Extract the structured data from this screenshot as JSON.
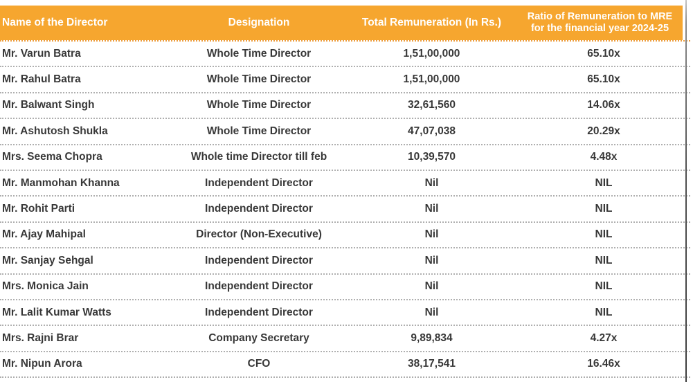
{
  "colors": {
    "header_bg": "#F6A62F",
    "header_text": "#FFFFFF",
    "body_text": "#383838",
    "divider": "#AFAFAF",
    "edge_line": "#4F4F4F"
  },
  "table": {
    "column_keys": [
      "name",
      "designation",
      "remuneration",
      "ratio"
    ],
    "headers": {
      "name": "Name of the Director",
      "designation": "Designation",
      "remuneration": "Total Remuneration (In Rs.)",
      "ratio_line1": "Ratio of Remuneration to MRE",
      "ratio_line2": "for the financial year 2024-25"
    },
    "rows": [
      [
        "Mr. Varun Batra",
        "Whole Time Director",
        "1,51,00,000",
        "65.10x"
      ],
      [
        "Mr. Rahul Batra",
        "Whole Time Director",
        "1,51,00,000",
        "65.10x"
      ],
      [
        "Mr. Balwant Singh",
        "Whole Time Director",
        "32,61,560",
        "14.06x"
      ],
      [
        "Mr. Ashutosh Shukla",
        "Whole Time Director",
        "47,07,038",
        "20.29x"
      ],
      [
        "Mrs. Seema Chopra",
        "Whole time Director till feb",
        "10,39,570",
        "4.48x"
      ],
      [
        "Mr. Manmohan Khanna",
        "Independent Director",
        "Nil",
        "NIL"
      ],
      [
        "Mr. Rohit Parti",
        "Independent Director",
        "Nil",
        "NIL"
      ],
      [
        "Mr. Ajay Mahipal",
        "Director (Non-Executive)",
        "Nil",
        "NIL"
      ],
      [
        "Mr. Sanjay Sehgal",
        "Independent Director",
        "Nil",
        "NIL"
      ],
      [
        "Mrs. Monica Jain",
        "Independent Director",
        "Nil",
        "NIL"
      ],
      [
        "Mr. Lalit Kumar Watts",
        "Independent Director",
        "Nil",
        "NIL"
      ],
      [
        "Mrs. Rajni Brar",
        "Company Secretary",
        "9,89,834",
        "4.27x"
      ],
      [
        "Mr. Nipun Arora",
        "CFO",
        "38,17,541",
        "16.46x"
      ]
    ]
  }
}
